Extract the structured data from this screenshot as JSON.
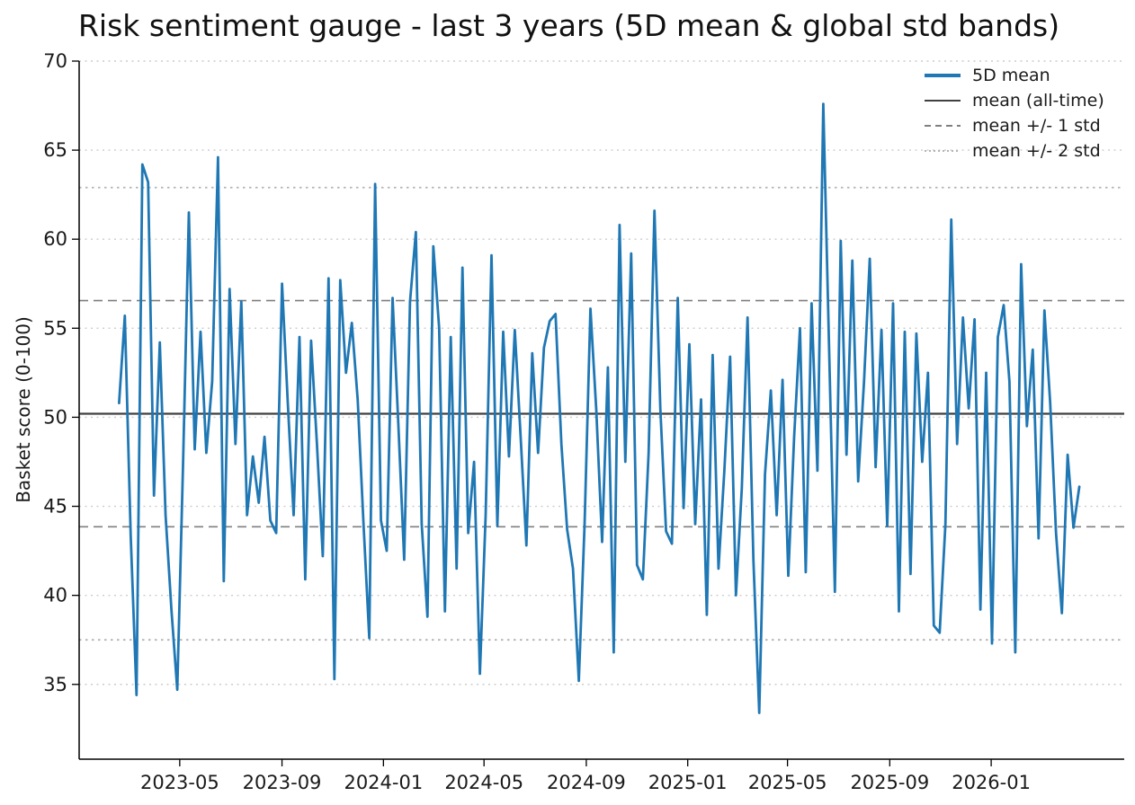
{
  "chart": {
    "title": "Risk sentiment gauge - last 3 years (5D mean & global std bands)",
    "ylabel": "Basket score (0-100)"
  },
  "legend": [
    {
      "label": "5D mean",
      "style": "series"
    },
    {
      "label": "mean (all-time)",
      "style": "mean"
    },
    {
      "label": "mean +/- 1 std",
      "style": "std1"
    },
    {
      "label": "mean +/- 2 std",
      "style": "std2"
    }
  ],
  "colors": {
    "series": "#1f77b4",
    "mean_line": "#404040",
    "std1_line": "#7f7f7f",
    "std2_line": "#b3b3b3",
    "grid": "#cccccc",
    "spine": "#000000",
    "text": "#1a1a1a"
  },
  "chart_data": {
    "type": "line",
    "title": "Risk sentiment gauge - last 3 years (5D mean & global std bands)",
    "xlabel": "",
    "ylabel": "Basket score (0-100)",
    "ylim": [
      30.8,
      70
    ],
    "xlim": [
      "2022-12-31",
      "2026-06-10"
    ],
    "yticks": [
      35,
      40,
      45,
      50,
      55,
      60,
      65,
      70
    ],
    "xticks": [
      {
        "label": "2023-05",
        "date": "2023-05-01"
      },
      {
        "label": "2023-09",
        "date": "2023-09-01"
      },
      {
        "label": "2024-01",
        "date": "2024-01-01"
      },
      {
        "label": "2024-05",
        "date": "2024-05-01"
      },
      {
        "label": "2024-09",
        "date": "2024-09-01"
      },
      {
        "label": "2025-01",
        "date": "2025-01-01"
      },
      {
        "label": "2025-05",
        "date": "2025-05-01"
      },
      {
        "label": "2025-09",
        "date": "2025-09-01"
      },
      {
        "label": "2026-01",
        "date": "2026-01-01"
      }
    ],
    "grid": "horizontal-dotted",
    "legend_position": "upper right",
    "reference_lines": {
      "mean": 50.2,
      "std": 6.35,
      "mean_plus_1std": 56.55,
      "mean_minus_1std": 43.85,
      "mean_plus_2std": 62.9,
      "mean_minus_2std": 37.5
    },
    "series": [
      {
        "name": "5D mean",
        "start_date": "2023-02-17",
        "interval_days": 7,
        "values": [
          50.8,
          55.7,
          43.4,
          34.4,
          64.2,
          63.2,
          45.6,
          54.2,
          44.5,
          39.2,
          34.7,
          47.5,
          61.5,
          48.2,
          54.8,
          48.0,
          52.0,
          64.6,
          40.8,
          57.2,
          48.5,
          56.5,
          44.5,
          47.8,
          45.2,
          48.9,
          44.2,
          43.5,
          57.5,
          50.8,
          44.5,
          54.5,
          40.9,
          54.3,
          48.5,
          42.2,
          57.8,
          35.3,
          57.7,
          52.5,
          55.3,
          51.0,
          44.0,
          37.6,
          63.1,
          44.2,
          42.5,
          56.7,
          49.5,
          42.0,
          56.5,
          60.4,
          44.0,
          38.8,
          59.6,
          55.0,
          39.1,
          54.5,
          41.5,
          58.4,
          43.5,
          47.5,
          35.6,
          44.5,
          59.1,
          43.9,
          54.8,
          47.8,
          54.9,
          48.9,
          42.8,
          53.6,
          48.0,
          53.9,
          55.4,
          55.8,
          48.5,
          43.7,
          41.5,
          35.2,
          44.0,
          56.1,
          50.4,
          43.0,
          52.8,
          36.8,
          60.8,
          47.5,
          59.2,
          41.7,
          40.9,
          48.0,
          61.6,
          50.5,
          43.6,
          42.9,
          56.7,
          44.9,
          54.1,
          44.0,
          51.0,
          38.9,
          53.5,
          41.5,
          47.0,
          53.4,
          40.0,
          46.0,
          55.6,
          42.0,
          33.4,
          46.8,
          51.5,
          44.5,
          52.1,
          41.1,
          48.9,
          55.0,
          41.3,
          56.4,
          47.0,
          67.6,
          54.0,
          40.2,
          59.9,
          47.9,
          58.8,
          46.4,
          52.0,
          58.9,
          47.2,
          54.9,
          43.9,
          56.4,
          39.1,
          54.8,
          41.2,
          54.7,
          47.5,
          52.5,
          38.3,
          37.9,
          44.0,
          61.1,
          48.5,
          55.6,
          50.5,
          55.5,
          39.2,
          52.5,
          37.3,
          54.5,
          56.3,
          52.0,
          36.8,
          58.6,
          49.5,
          53.8,
          43.2,
          56.0,
          50.8,
          43.5,
          39.0,
          47.9,
          43.8,
          46.1
        ]
      }
    ]
  }
}
